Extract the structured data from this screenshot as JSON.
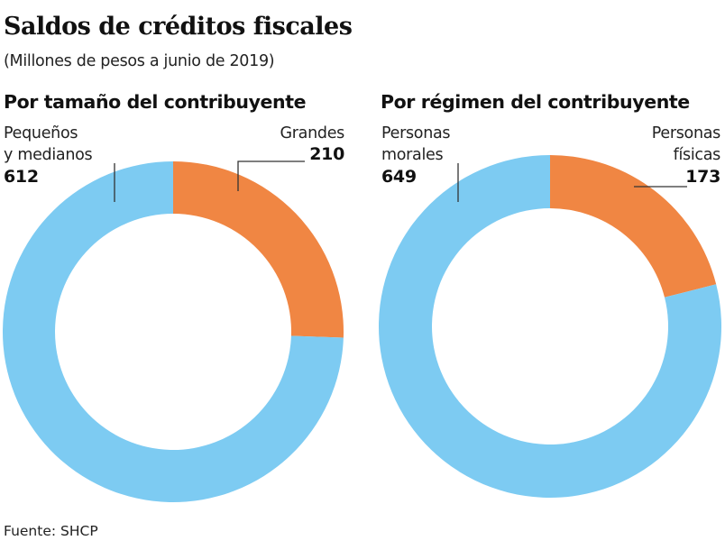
{
  "title": "Saldos de créditos fiscales",
  "subtitle": "(Millones de pesos a junio de 2019)",
  "source": "Fuente: SHCP",
  "colors": {
    "blue": "#7DCBF2",
    "orange": "#F08643",
    "leader": "#333333"
  },
  "chart_data": [
    {
      "type": "pie",
      "variant": "donut",
      "title": "Por tamaño del contribuyente",
      "slices": [
        {
          "label_line1": "Grandes",
          "label_line2": "",
          "value": 210,
          "color": "#F08643"
        },
        {
          "label_line1": "Pequeños",
          "label_line2": "y medianos",
          "value": 612,
          "color": "#7DCBF2"
        }
      ]
    },
    {
      "type": "pie",
      "variant": "donut",
      "title": "Por régimen del contribuyente",
      "slices": [
        {
          "label_line1": "Personas",
          "label_line2": "físicas",
          "value": 173,
          "color": "#F08643"
        },
        {
          "label_line1": "Personas",
          "label_line2": "morales",
          "value": 649,
          "color": "#7DCBF2"
        }
      ]
    }
  ]
}
